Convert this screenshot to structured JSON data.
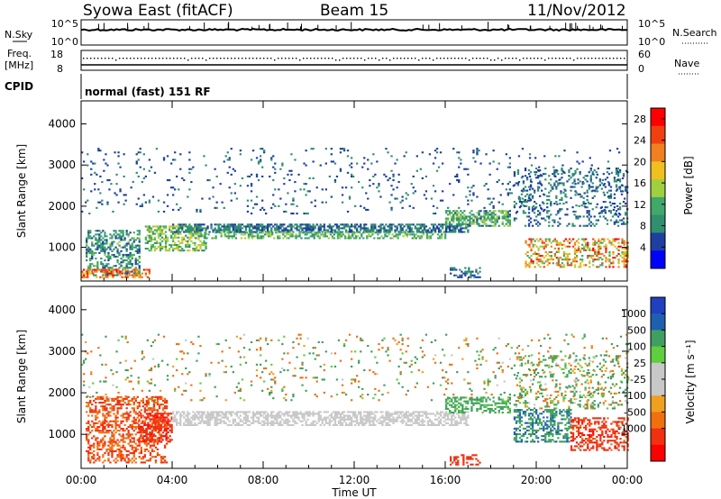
{
  "header": {
    "station": "Syowa East (fitACF)",
    "beam": "Beam 15",
    "date": "11/Nov/2012"
  },
  "panels": {
    "nsky": {
      "label": "N.Sky",
      "right_label": "N.Search",
      "left_ticks": [
        "10^5",
        "10^0"
      ],
      "right_ticks": [
        "10^5",
        "10^0"
      ]
    },
    "freq": {
      "label_line1": "Freq.",
      "label_line2": "[MHz]",
      "right_label": "Nave",
      "left_ticks": [
        "18",
        "8"
      ],
      "right_ticks": [
        "60",
        "0"
      ]
    },
    "cpid": {
      "label": "CPID",
      "text": "normal (fast) 151 RF"
    }
  },
  "colors": {
    "power_scale": [
      "#0000ff",
      "#1f3fa0",
      "#2f8f6f",
      "#3fa86a",
      "#9fd040",
      "#f0c020",
      "#f08020",
      "#f04010",
      "#ff0000"
    ],
    "velocity_scale": [
      "#2040c0",
      "#1f5fb0",
      "#3f9f5f",
      "#5fcf3f",
      "#c8c8c8",
      "#c8c8c8",
      "#f0a020",
      "#f07010",
      "#f03010",
      "#ff0000"
    ]
  },
  "chart_data": [
    {
      "type": "heatmap",
      "name": "power",
      "xlabel": "Time UT",
      "ylabel": "Slant Range [km]",
      "x_ticks": [
        "00:00",
        "04:00",
        "08:00",
        "12:00",
        "16:00",
        "20:00",
        "00:00"
      ],
      "y_ticks": [
        1000,
        2000,
        3000,
        4000
      ],
      "ylim": [
        180,
        4560
      ],
      "xlim_hours": [
        0,
        24
      ],
      "colorbar_label": "Power [dB]",
      "colorbar_ticks": [
        4,
        8,
        12,
        16,
        20,
        24,
        28
      ],
      "colorbar_range": [
        0,
        30
      ],
      "regions": [
        {
          "t0": 0.2,
          "t1": 2.6,
          "r0": 300,
          "r1": 1400,
          "v0": 4,
          "v1": 14,
          "d": 0.45
        },
        {
          "t0": 0.0,
          "t1": 3.0,
          "r0": 250,
          "r1": 450,
          "v0": 18,
          "v1": 28,
          "d": 0.55
        },
        {
          "t0": 2.8,
          "t1": 5.5,
          "r0": 900,
          "r1": 1500,
          "v0": 8,
          "v1": 18,
          "d": 0.55
        },
        {
          "t0": 4.0,
          "t1": 17.0,
          "r0": 1350,
          "r1": 1550,
          "v0": 4,
          "v1": 10,
          "d": 0.65
        },
        {
          "t0": 5.0,
          "t1": 16.0,
          "r0": 1200,
          "r1": 1350,
          "v0": 8,
          "v1": 16,
          "d": 0.5
        },
        {
          "t0": 0.0,
          "t1": 24.0,
          "r0": 1800,
          "r1": 3400,
          "v0": 4,
          "v1": 8,
          "d": 0.05
        },
        {
          "t0": 16.0,
          "t1": 18.8,
          "r0": 1500,
          "r1": 1900,
          "v0": 6,
          "v1": 16,
          "d": 0.6
        },
        {
          "t0": 19.0,
          "t1": 24.0,
          "r0": 1500,
          "r1": 2900,
          "v0": 4,
          "v1": 10,
          "d": 0.22
        },
        {
          "t0": 19.5,
          "t1": 24.0,
          "r0": 500,
          "r1": 1200,
          "v0": 10,
          "v1": 28,
          "d": 0.4
        },
        {
          "t0": 16.2,
          "t1": 17.5,
          "r0": 250,
          "r1": 500,
          "v0": 4,
          "v1": 10,
          "d": 0.35
        }
      ]
    },
    {
      "type": "heatmap",
      "name": "velocity",
      "xlabel": "Time UT",
      "ylabel": "Slant Range [km]",
      "x_ticks": [
        "00:00",
        "04:00",
        "08:00",
        "12:00",
        "16:00",
        "20:00",
        "00:00"
      ],
      "y_ticks": [
        1000,
        2000,
        3000,
        4000
      ],
      "ylim": [
        180,
        4560
      ],
      "xlim_hours": [
        0,
        24
      ],
      "colorbar_label": "Velocity [m s⁻¹]",
      "colorbar_ticks": [
        "1000",
        "500",
        "100",
        "25",
        "-25",
        "-100",
        "-500",
        "-1000"
      ],
      "colorbar_range": [
        -1200,
        1200
      ],
      "regions": [
        {
          "t0": 0.2,
          "t1": 3.8,
          "r0": 300,
          "r1": 1900,
          "v0": -700,
          "v1": -300,
          "d": 0.45
        },
        {
          "t0": 2.5,
          "t1": 4.0,
          "r0": 800,
          "r1": 1500,
          "v0": -1100,
          "v1": -600,
          "d": 0.55
        },
        {
          "t0": 4.0,
          "t1": 17.0,
          "r0": 1200,
          "r1": 1550,
          "v0": -20,
          "v1": 20,
          "d": 0.6
        },
        {
          "t0": 0.0,
          "t1": 24.0,
          "r0": 1800,
          "r1": 3400,
          "v0": -400,
          "v1": 400,
          "d": 0.05
        },
        {
          "t0": 16.0,
          "t1": 18.8,
          "r0": 1500,
          "r1": 1900,
          "v0": 50,
          "v1": 300,
          "d": 0.45
        },
        {
          "t0": 19.0,
          "t1": 21.5,
          "r0": 800,
          "r1": 1600,
          "v0": 100,
          "v1": 700,
          "d": 0.45
        },
        {
          "t0": 21.5,
          "t1": 24.0,
          "r0": 600,
          "r1": 1400,
          "v0": -1100,
          "v1": -400,
          "d": 0.45
        },
        {
          "t0": 19.0,
          "t1": 24.0,
          "r0": 1600,
          "r1": 2900,
          "v0": -200,
          "v1": 400,
          "d": 0.2
        },
        {
          "t0": 16.2,
          "t1": 17.5,
          "r0": 250,
          "r1": 500,
          "v0": -700,
          "v1": -500,
          "d": 0.35
        }
      ]
    }
  ]
}
